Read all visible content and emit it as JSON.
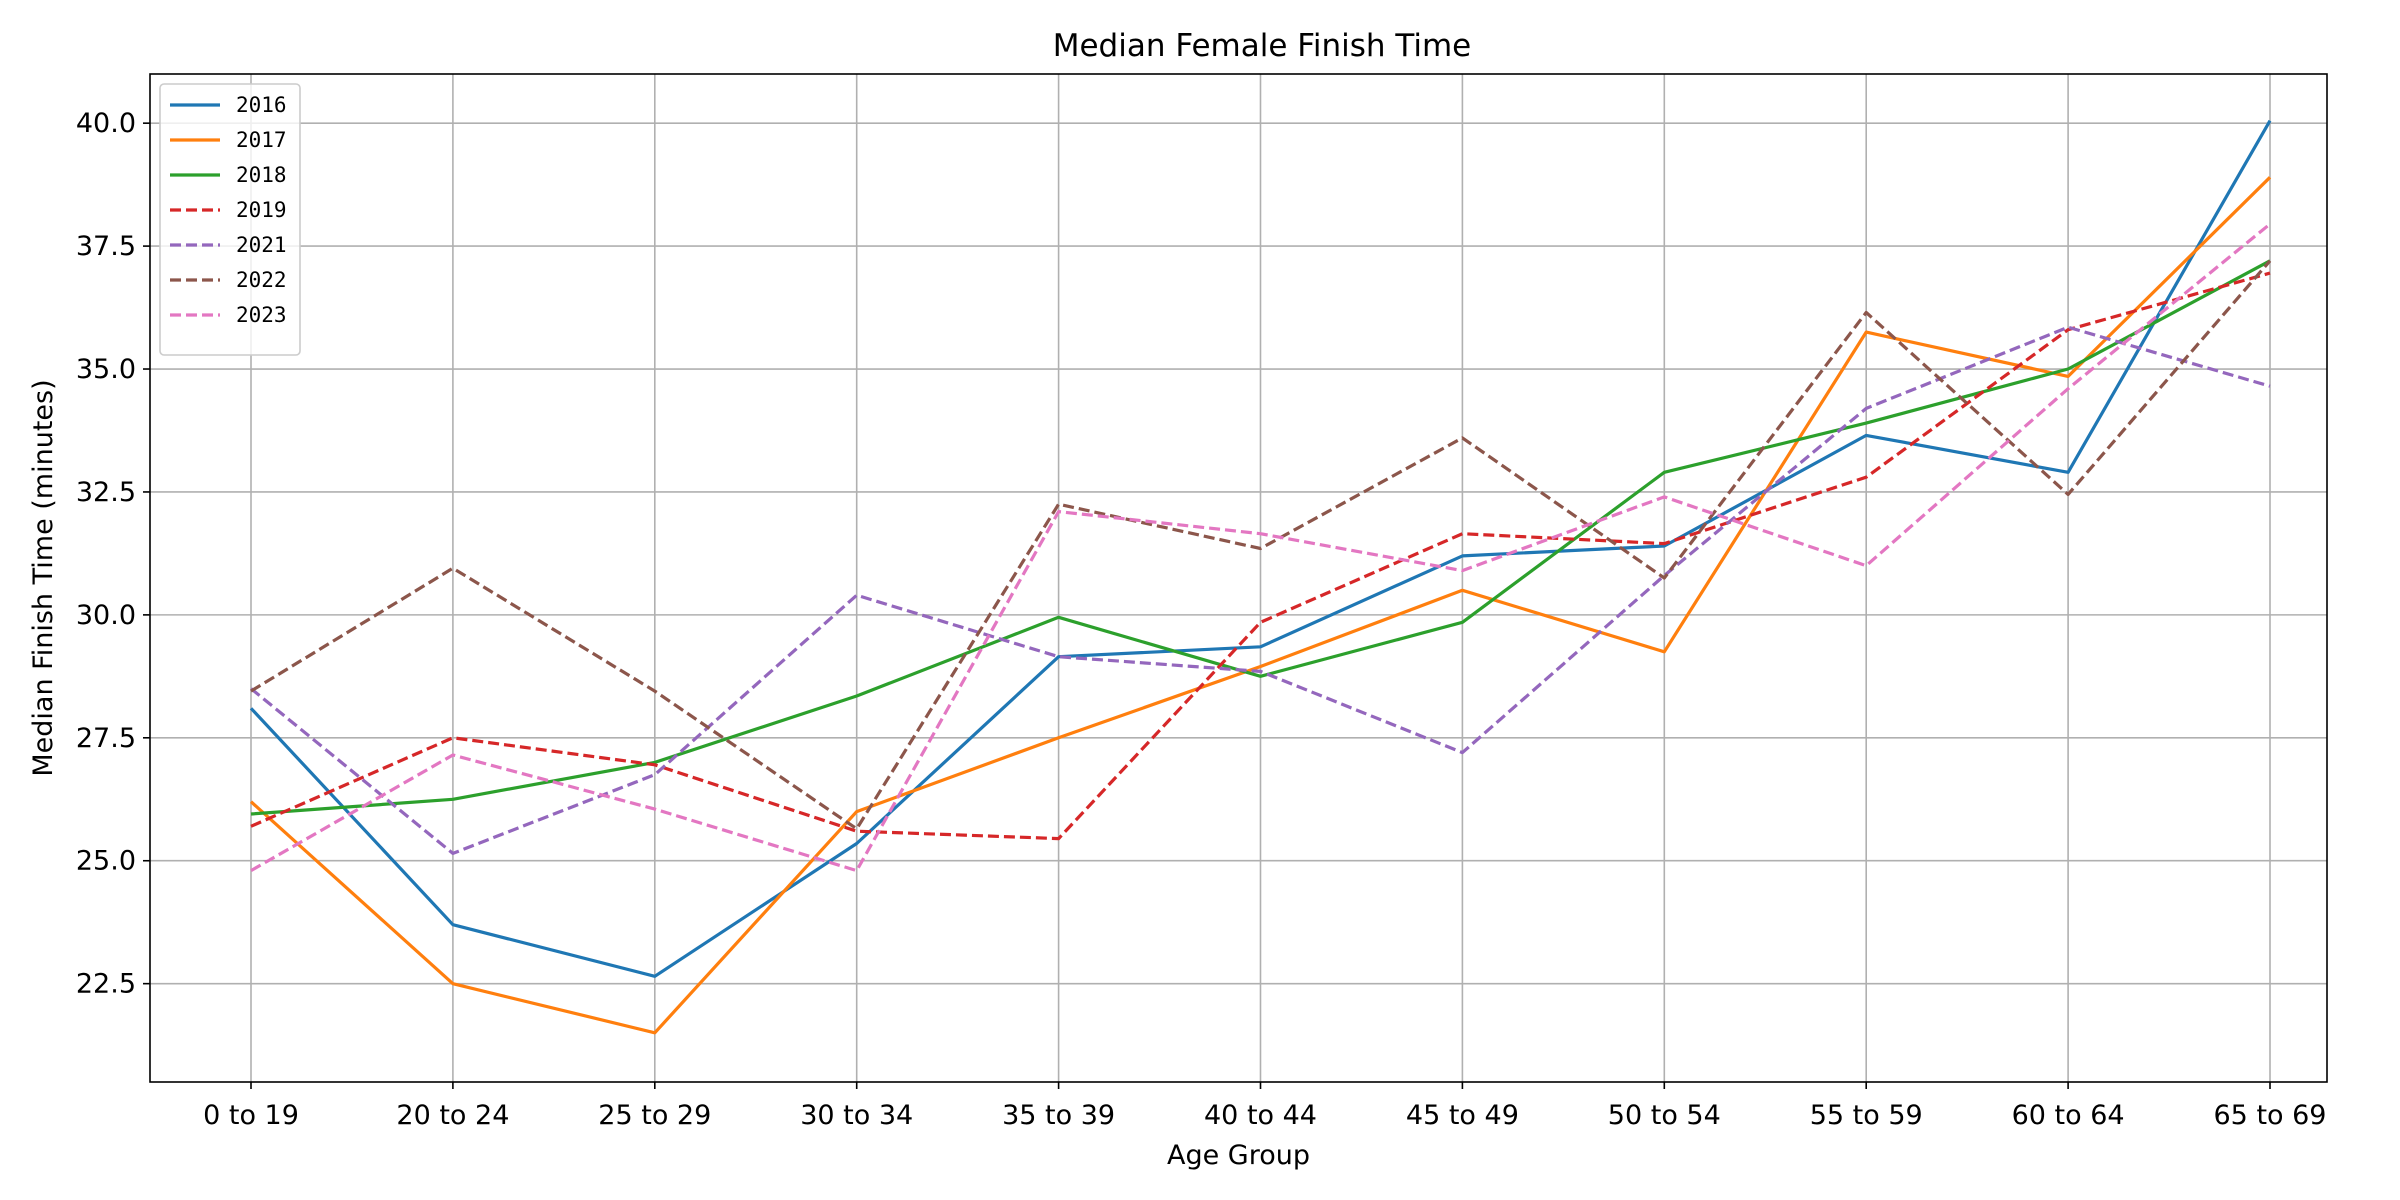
{
  "chart_data": {
    "type": "line",
    "title": "Median Female Finish Time",
    "xlabel": "Age Group",
    "ylabel": "Median Finish Time (minutes)",
    "categories": [
      "0 to 19",
      "20 to 24",
      "25 to 29",
      "30 to 34",
      "35 to 39",
      "40 to 44",
      "45 to 49",
      "50 to 54",
      "55 to 59",
      "60 to 64",
      "65 to 69"
    ],
    "ylim": [
      20.5,
      41.0
    ],
    "yticks": [
      22.5,
      25.0,
      27.5,
      30.0,
      32.5,
      35.0,
      37.5,
      40.0
    ],
    "ytick_labels": [
      "22.5",
      "25.0",
      "27.5",
      "30.0",
      "32.5",
      "35.0",
      "37.5",
      "40.0"
    ],
    "grid": true,
    "legend_position": "top-left",
    "series": [
      {
        "name": "2016",
        "color": "#1f77b4",
        "dashed": false,
        "values": [
          28.1,
          23.7,
          22.65,
          25.35,
          29.15,
          29.35,
          31.2,
          31.4,
          33.65,
          32.9,
          40.05
        ]
      },
      {
        "name": "2017",
        "color": "#ff7f0e",
        "dashed": false,
        "values": [
          26.2,
          22.5,
          21.5,
          26.0,
          27.5,
          28.95,
          30.5,
          29.25,
          35.75,
          34.85,
          38.9
        ]
      },
      {
        "name": "2018",
        "color": "#2ca02c",
        "dashed": false,
        "values": [
          25.95,
          26.25,
          27.0,
          28.35,
          29.95,
          28.75,
          29.85,
          32.9,
          33.9,
          35.0,
          37.2
        ]
      },
      {
        "name": "2019",
        "color": "#d62728",
        "dashed": true,
        "values": [
          25.7,
          27.5,
          26.95,
          25.6,
          25.45,
          29.85,
          31.65,
          31.45,
          32.8,
          35.8,
          36.95
        ]
      },
      {
        "name": "2021",
        "color": "#9467bd",
        "dashed": true,
        "values": [
          28.5,
          25.15,
          26.75,
          30.4,
          29.15,
          28.85,
          27.2,
          30.8,
          34.2,
          35.85,
          34.65
        ]
      },
      {
        "name": "2022",
        "color": "#8c564b",
        "dashed": true,
        "values": [
          28.45,
          30.95,
          28.45,
          25.65,
          32.25,
          31.35,
          33.6,
          30.75,
          36.15,
          32.45,
          37.2
        ]
      },
      {
        "name": "2023",
        "color": "#e377c2",
        "dashed": true,
        "values": [
          24.8,
          27.15,
          26.05,
          24.8,
          32.1,
          31.65,
          30.9,
          32.4,
          31.0,
          34.6,
          37.95
        ]
      }
    ]
  }
}
